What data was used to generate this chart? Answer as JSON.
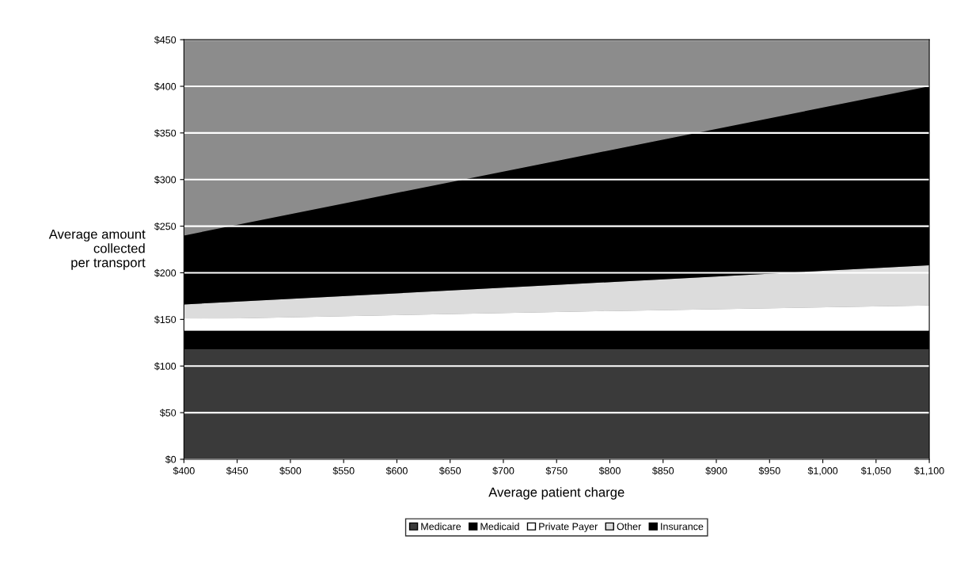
{
  "chart_data": {
    "type": "area",
    "stacked": true,
    "xlabel": "Average patient charge",
    "ylabel": "Average amount\ncollected\nper transport",
    "x": [
      400,
      750,
      1100
    ],
    "series": [
      {
        "name": "Medicare",
        "color": "#3a3a3a",
        "values": [
          118,
          118,
          118
        ]
      },
      {
        "name": "Medicaid",
        "color": "#000000",
        "values": [
          20,
          20,
          20
        ]
      },
      {
        "name": "Private Payer",
        "color": "#ffffff",
        "values": [
          12,
          20,
          27
        ]
      },
      {
        "name": "Other",
        "color": "#dcdcdc",
        "values": [
          16,
          29,
          43
        ]
      },
      {
        "name": "Insurance",
        "color": "#000000",
        "values": [
          74,
          133,
          192
        ]
      }
    ],
    "xlim": [
      400,
      1100
    ],
    "ylim": [
      0,
      450
    ],
    "xticks": [
      {
        "value": 400,
        "label": "$400"
      },
      {
        "value": 450,
        "label": "$450"
      },
      {
        "value": 500,
        "label": "$500"
      },
      {
        "value": 550,
        "label": "$550"
      },
      {
        "value": 600,
        "label": "$600"
      },
      {
        "value": 650,
        "label": "$650"
      },
      {
        "value": 700,
        "label": "$700"
      },
      {
        "value": 750,
        "label": "$750"
      },
      {
        "value": 800,
        "label": "$800"
      },
      {
        "value": 850,
        "label": "$850"
      },
      {
        "value": 900,
        "label": "$900"
      },
      {
        "value": 950,
        "label": "$950"
      },
      {
        "value": 1000,
        "label": "$1,000"
      },
      {
        "value": 1050,
        "label": "$1,050"
      },
      {
        "value": 1100,
        "label": "$1,100"
      }
    ],
    "yticks": [
      {
        "value": 0,
        "label": "$0"
      },
      {
        "value": 50,
        "label": "$50"
      },
      {
        "value": 100,
        "label": "$100"
      },
      {
        "value": 150,
        "label": "$150"
      },
      {
        "value": 200,
        "label": "$200"
      },
      {
        "value": 250,
        "label": "$250"
      },
      {
        "value": 300,
        "label": "$300"
      },
      {
        "value": 350,
        "label": "$350"
      },
      {
        "value": 400,
        "label": "$400"
      },
      {
        "value": 450,
        "label": "$450"
      }
    ],
    "grid": "y",
    "legend": "bottom"
  }
}
